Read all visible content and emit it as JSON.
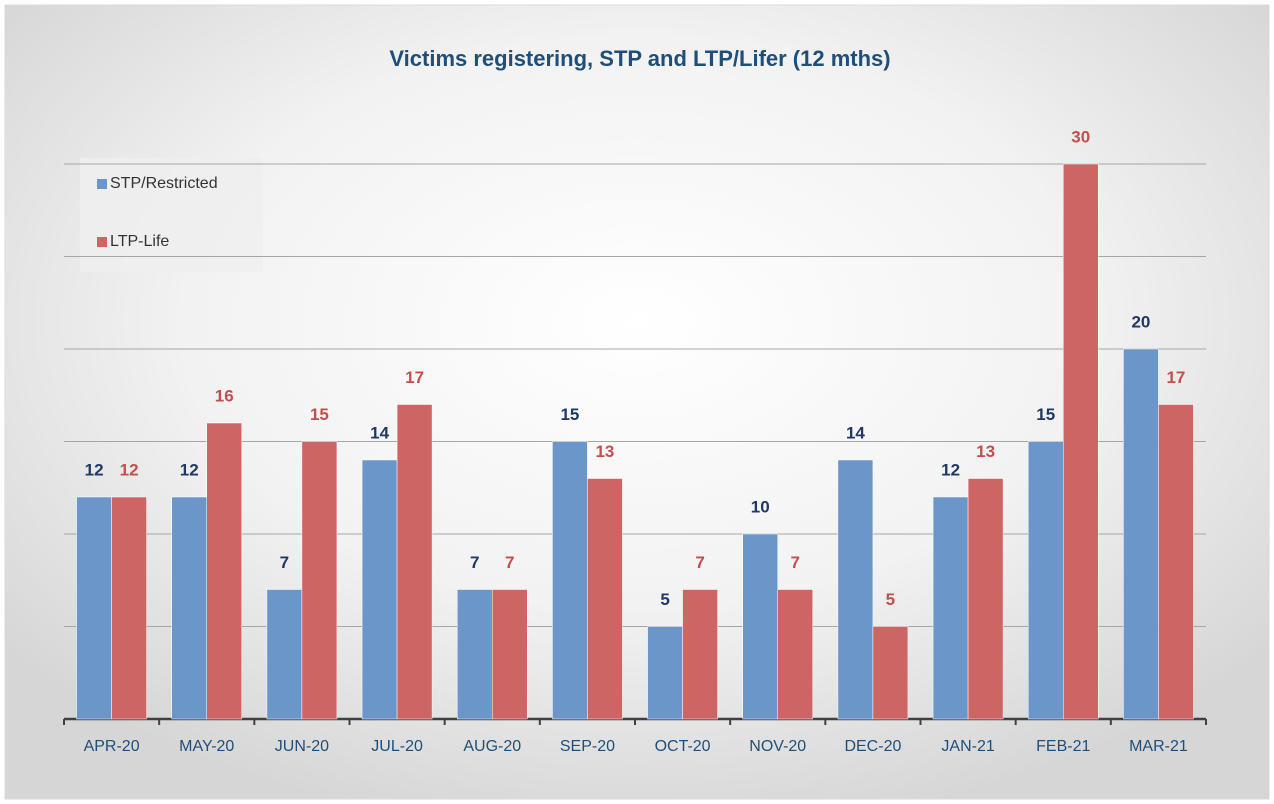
{
  "chart_data": {
    "type": "bar",
    "title": "Victims registering,  STP and LTP/Lifer (12 mths)",
    "categories": [
      "APR-20",
      "MAY-20",
      "JUN-20",
      "JUL-20",
      "AUG-20",
      "SEP-20",
      "OCT-20",
      "NOV-20",
      "DEC-20",
      "JAN-21",
      "FEB-21",
      "MAR-21"
    ],
    "series": [
      {
        "name": "STP/Restricted",
        "color": "#6a96c9",
        "label_color": "#1f3864",
        "values": [
          12,
          12,
          7,
          14,
          7,
          15,
          5,
          10,
          14,
          12,
          15,
          20
        ]
      },
      {
        "name": "LTP-Life",
        "color": "#cd6564",
        "label_color": "#c0504d",
        "values": [
          12,
          16,
          15,
          17,
          7,
          13,
          7,
          7,
          5,
          13,
          30,
          17
        ]
      }
    ],
    "ylim": [
      0,
      30
    ],
    "yticks": [
      0,
      5,
      10,
      15,
      20,
      25,
      30
    ],
    "grid": true,
    "legend": "top-left"
  }
}
